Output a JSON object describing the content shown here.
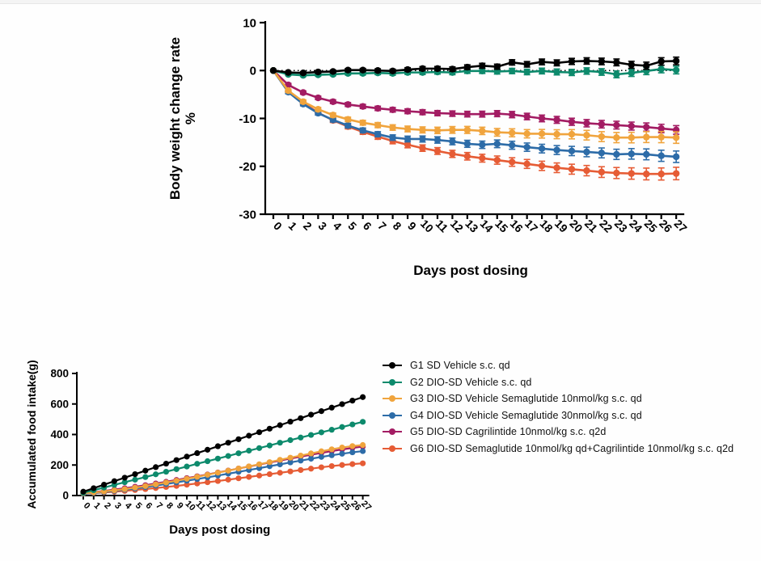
{
  "window": {
    "background": "#fefefe",
    "top_strip_color": "#f4f4f4"
  },
  "legend": {
    "items": [
      {
        "id": "G1",
        "label": "G1 SD Vehicle s.c. qd",
        "color": "#000000"
      },
      {
        "id": "G2",
        "label": "G2 DIO-SD Vehicle s.c. qd",
        "color": "#0d8a6c"
      },
      {
        "id": "G3",
        "label": "G3 DIO-SD Vehicle Semaglutide 10nmol/kg s.c. qd",
        "color": "#f0a43d"
      },
      {
        "id": "G4",
        "label": "G4 DIO-SD Vehicle Semaglutide 30nmol/kg s.c. qd",
        "color": "#2d6ca8"
      },
      {
        "id": "G5",
        "label": "G5 DIO-SD Cagrilintide 10nmol/kg s.c. q2d",
        "color": "#a31c63"
      },
      {
        "id": "G6",
        "label": "G6 DIO-SD Semaglutide 10nmol/kg qd+Cagrilintide 10nmol/kg s.c. q2d",
        "color": "#e65c35"
      }
    ]
  },
  "chart_data": [
    {
      "id": "body-weight",
      "type": "line",
      "title": "",
      "xlabel": "Days post dosing",
      "ylabel_lines": [
        "Body weight change rate",
        "%"
      ],
      "x": [
        0,
        1,
        2,
        3,
        4,
        5,
        6,
        7,
        8,
        9,
        10,
        11,
        12,
        13,
        14,
        15,
        16,
        17,
        18,
        19,
        20,
        21,
        22,
        23,
        24,
        25,
        26,
        27
      ],
      "xlim": [
        0,
        27
      ],
      "ylim": [
        -30,
        10
      ],
      "yticks": [
        10,
        0,
        -10,
        -20,
        -30
      ],
      "grid": false,
      "legend_position": "none",
      "reference_line_y": 0,
      "draw_order": [
        "G5",
        "G6",
        "G4",
        "G3",
        "G2",
        "G1"
      ],
      "series": [
        {
          "id": "G1",
          "name": "G1 SD Vehicle s.c. qd",
          "color": "#000000",
          "sem_start": 0.2,
          "sem_end": 0.8,
          "values": [
            0,
            -0.4,
            -0.5,
            -0.3,
            -0.2,
            0.1,
            0.1,
            0,
            -0.1,
            0.2,
            0.4,
            0.4,
            0.3,
            0.7,
            1.0,
            0.8,
            1.7,
            1.3,
            1.8,
            1.6,
            1.9,
            2.0,
            1.9,
            1.7,
            1.2,
            1.0,
            1.9,
            2.0
          ]
        },
        {
          "id": "G2",
          "name": "G2 DIO-SD Vehicle s.c. qd",
          "color": "#0d8a6c",
          "sem_start": 0.2,
          "sem_end": 0.8,
          "values": [
            0,
            -0.8,
            -1.0,
            -0.9,
            -0.8,
            -0.6,
            -0.6,
            -0.5,
            -0.6,
            -0.4,
            -0.4,
            -0.3,
            -0.4,
            -0.1,
            -0.1,
            -0.2,
            -0.1,
            -0.3,
            -0.1,
            -0.3,
            -0.4,
            -0.1,
            -0.3,
            -0.8,
            -0.5,
            -0.1,
            0.3,
            0.1
          ]
        },
        {
          "id": "G3",
          "name": "G3 DIO-SD Vehicle Semaglutide 10nmol/kg s.c. qd",
          "color": "#f0a43d",
          "sem_start": 0.3,
          "sem_end": 1.2,
          "values": [
            0,
            -4.2,
            -6.5,
            -8.1,
            -9.3,
            -10.2,
            -10.9,
            -11.4,
            -11.9,
            -12.2,
            -12.4,
            -12.5,
            -12.4,
            -12.4,
            -12.6,
            -12.9,
            -13.0,
            -13.2,
            -13.2,
            -13.3,
            -13.3,
            -13.5,
            -13.8,
            -14.0,
            -14.0,
            -13.9,
            -13.9,
            -14.0
          ]
        },
        {
          "id": "G4",
          "name": "G4 DIO-SD Vehicle Semaglutide 30nmol/kg s.c. qd",
          "color": "#2d6ca8",
          "sem_start": 0.3,
          "sem_end": 1.2,
          "values": [
            0,
            -4.5,
            -7.0,
            -8.9,
            -10.3,
            -11.5,
            -12.5,
            -13.3,
            -14.0,
            -14.3,
            -14.3,
            -14.5,
            -14.8,
            -15.3,
            -15.5,
            -15.3,
            -15.6,
            -16.0,
            -16.3,
            -16.6,
            -16.8,
            -17.0,
            -17.2,
            -17.5,
            -17.4,
            -17.5,
            -17.8,
            -18.0
          ]
        },
        {
          "id": "G5",
          "name": "G5 DIO-SD Cagrilintide 10nmol/kg s.c. q2d",
          "color": "#a31c63",
          "sem_start": 0.3,
          "sem_end": 0.9,
          "values": [
            0,
            -3.0,
            -4.6,
            -5.7,
            -6.5,
            -7.1,
            -7.5,
            -7.9,
            -8.2,
            -8.5,
            -8.7,
            -8.9,
            -9.0,
            -9.1,
            -9.1,
            -9.0,
            -9.2,
            -9.6,
            -10.0,
            -10.3,
            -10.7,
            -11.0,
            -11.2,
            -11.4,
            -11.6,
            -11.8,
            -12.1,
            -12.4
          ]
        },
        {
          "id": "G6",
          "name": "G6 DIO-SD Semaglutide 10nmol/kg qd+Cagrilintide 10nmol/kg s.c. q2d",
          "color": "#e65c35",
          "sem_start": 0.3,
          "sem_end": 1.3,
          "values": [
            0,
            -4.3,
            -6.8,
            -8.8,
            -10.4,
            -11.7,
            -12.8,
            -13.8,
            -14.7,
            -15.5,
            -16.2,
            -16.8,
            -17.4,
            -17.9,
            -18.3,
            -18.7,
            -19.1,
            -19.5,
            -19.9,
            -20.3,
            -20.6,
            -20.9,
            -21.2,
            -21.4,
            -21.5,
            -21.6,
            -21.6,
            -21.5
          ]
        }
      ]
    },
    {
      "id": "food-intake",
      "type": "line",
      "title": "",
      "xlabel": "Days post dosing",
      "ylabel_lines": [
        "Accumulated food intake(g)"
      ],
      "x": [
        0,
        1,
        2,
        3,
        4,
        5,
        6,
        7,
        8,
        9,
        10,
        11,
        12,
        13,
        14,
        15,
        16,
        17,
        18,
        19,
        20,
        21,
        22,
        23,
        24,
        25,
        26,
        27
      ],
      "xlim": [
        0,
        27
      ],
      "ylim": [
        0,
        800
      ],
      "yticks": [
        0,
        200,
        400,
        600,
        800
      ],
      "grid": false,
      "legend_position": "right",
      "draw_order": [
        "G5",
        "G6",
        "G4",
        "G3",
        "G2",
        "G1"
      ],
      "series": [
        {
          "id": "G1",
          "name": "G1 SD Vehicle s.c. qd",
          "color": "#000000",
          "values": [
            25,
            48,
            71,
            94,
            117,
            140,
            163,
            186,
            209,
            232,
            255,
            278,
            300,
            323,
            346,
            369,
            392,
            415,
            438,
            461,
            484,
            507,
            530,
            553,
            576,
            599,
            622,
            645
          ]
        },
        {
          "id": "G2",
          "name": "G2 DIO-SD Vehicle s.c. qd",
          "color": "#0d8a6c",
          "values": [
            18,
            35,
            52,
            70,
            87,
            104,
            121,
            139,
            156,
            173,
            190,
            208,
            225,
            242,
            259,
            277,
            294,
            311,
            328,
            346,
            363,
            380,
            397,
            414,
            431,
            449,
            466,
            483
          ]
        },
        {
          "id": "G3",
          "name": "G3 DIO-SD Vehicle Semaglutide 10nmol/kg s.c. qd",
          "color": "#f0a43d",
          "values": [
            15,
            20,
            27,
            34,
            42,
            52,
            62,
            73,
            85,
            97,
            110,
            123,
            136,
            150,
            163,
            177,
            191,
            205,
            219,
            234,
            248,
            262,
            276,
            290,
            303,
            315,
            324,
            331
          ]
        },
        {
          "id": "G4",
          "name": "G4 DIO-SD Vehicle Semaglutide 30nmol/kg s.c. qd",
          "color": "#2d6ca8",
          "values": [
            12,
            17,
            23,
            30,
            38,
            46,
            55,
            65,
            75,
            86,
            97,
            108,
            119,
            131,
            143,
            155,
            167,
            179,
            192,
            204,
            217,
            229,
            241,
            253,
            264,
            274,
            283,
            291
          ]
        },
        {
          "id": "G5",
          "name": "G5 DIO-SD Cagrilintide 10nmol/kg s.c. q2d",
          "color": "#a31c63",
          "values": [
            15,
            22,
            30,
            39,
            48,
            58,
            68,
            79,
            90,
            102,
            114,
            126,
            138,
            151,
            164,
            177,
            190,
            203,
            216,
            229,
            242,
            255,
            267,
            279,
            291,
            302,
            312,
            321
          ]
        },
        {
          "id": "G6",
          "name": "G6 DIO-SD Semaglutide 10nmol/kg qd+Cagrilintide 10nmol/kg s.c. q2d",
          "color": "#e65c35",
          "values": [
            12,
            16,
            20,
            25,
            30,
            36,
            42,
            49,
            56,
            63,
            71,
            79,
            87,
            95,
            104,
            113,
            122,
            131,
            140,
            149,
            158,
            167,
            176,
            185,
            193,
            200,
            206,
            211
          ]
        }
      ]
    }
  ]
}
